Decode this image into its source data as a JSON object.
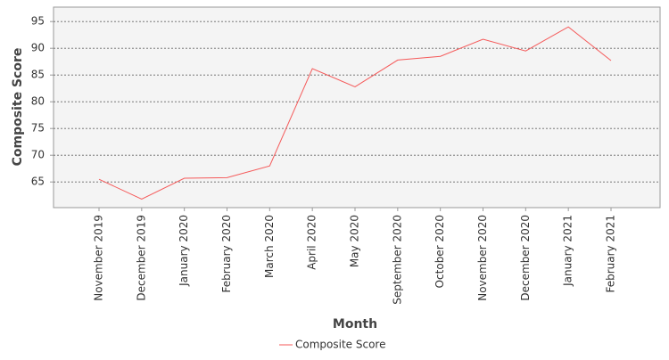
{
  "chart_data": {
    "type": "line",
    "x_label": "Month",
    "y_label": "Composite Score",
    "categories": [
      "November 2019",
      "December 2019",
      "January 2020",
      "February 2020",
      "March 2020",
      "April 2020",
      "May 2020",
      "September 2020",
      "October 2020",
      "November 2020",
      "December 2020",
      "January 2021",
      "February 2021"
    ],
    "series": [
      {
        "name": "Composite Score",
        "color": "#f55a5a",
        "values": [
          65.5,
          61.8,
          65.7,
          65.8,
          68.0,
          86.2,
          82.8,
          87.8,
          88.5,
          91.7,
          89.5,
          94.0,
          87.7
        ]
      }
    ],
    "ylim": [
      60.2,
      97.7
    ],
    "yticks": [
      65,
      70,
      75,
      80,
      85,
      90,
      95
    ],
    "grid": true
  }
}
